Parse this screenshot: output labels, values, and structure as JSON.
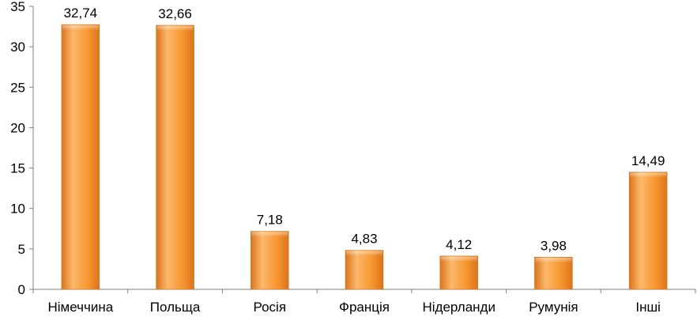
{
  "chart_data": {
    "type": "bar",
    "categories": [
      "Німеччина",
      "Польща",
      "Росія",
      "Франція",
      "Нідерланди",
      "Румунія",
      "Інші"
    ],
    "values": [
      32.74,
      32.66,
      7.18,
      4.83,
      4.12,
      3.98,
      14.49
    ],
    "data_labels": [
      "32,74",
      "32,66",
      "7,18",
      "4,83",
      "4,12",
      "3,98",
      "14,49"
    ],
    "ylim": [
      0,
      35
    ],
    "yticks": [
      0,
      5,
      10,
      15,
      20,
      25,
      30,
      35
    ],
    "ytick_labels": [
      "0",
      "5",
      "10",
      "15",
      "20",
      "25",
      "30",
      "35"
    ],
    "title": "",
    "xlabel": "",
    "ylabel": "",
    "grid": false,
    "legend": "none",
    "colors": {
      "bar_light": "#fbb86a",
      "bar_mid": "#f7962f",
      "bar_dark": "#d9741c",
      "axis": "#808080"
    }
  }
}
